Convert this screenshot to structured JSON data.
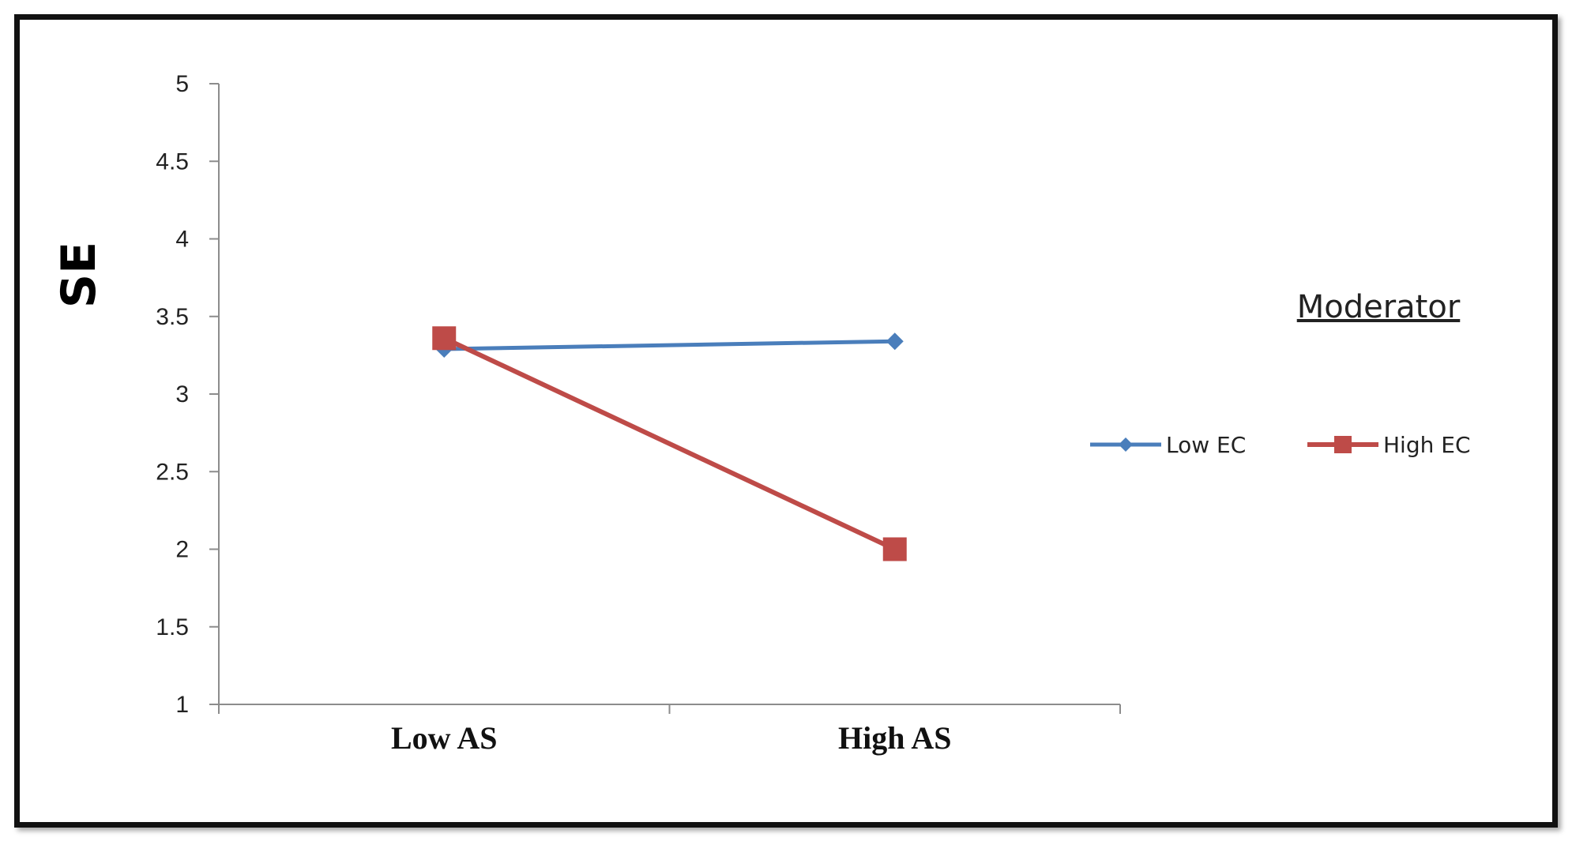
{
  "chart_data": {
    "type": "line",
    "title": "",
    "xlabel": "",
    "ylabel": "SE",
    "categories": [
      "Low AS",
      "High AS"
    ],
    "ylim": [
      1,
      5
    ],
    "yticks": [
      "1",
      "1.5",
      "2",
      "2.5",
      "3",
      "3.5",
      "4",
      "4.5",
      "5"
    ],
    "grid": false,
    "legend": {
      "title": "Moderator",
      "placement": "right"
    },
    "series": [
      {
        "name": "Low EC",
        "values": [
          3.29,
          3.34
        ],
        "color": "#4a7ebb",
        "marker": "diamond"
      },
      {
        "name": "High EC",
        "values": [
          3.36,
          2.0
        ],
        "color": "#be4b48",
        "marker": "square"
      }
    ]
  }
}
